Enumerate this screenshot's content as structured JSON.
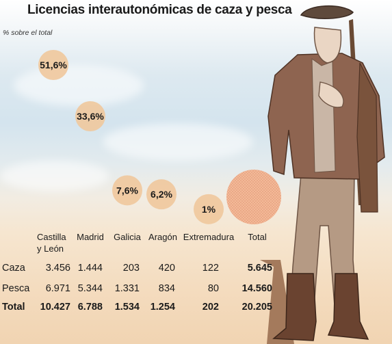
{
  "chart_data": {
    "type": "bubble",
    "title": "Licencias interautonómicas de caza y pesca",
    "subtitle": "% sobre el total",
    "categories": [
      "Castilla y León",
      "Madrid",
      "Galicia",
      "Aragón",
      "Extremadura",
      "Total"
    ],
    "series": [
      {
        "values": [
          51.6,
          33.6,
          7.6,
          6.2,
          1.0
        ],
        "labels": [
          "51,6%",
          "33,6%",
          "7,6%",
          "6,2%",
          "1%"
        ]
      }
    ],
    "colors": {
      "bubble": "#f0c89c",
      "total_bubble": "#f2b48c",
      "text": "#1a1a1a"
    }
  },
  "table": {
    "columns": [
      "Castilla\ny León",
      "Madrid",
      "Galicia",
      "Aragón",
      "Extremadura",
      "Total"
    ],
    "rows": [
      {
        "label": "Caza",
        "values": [
          "3.456",
          "1.444",
          "203",
          "420",
          "122",
          "5.645"
        ]
      },
      {
        "label": "Pesca",
        "values": [
          "6.971",
          "5.344",
          "1.331",
          "834",
          "80",
          "14.560"
        ]
      },
      {
        "label": "Total",
        "values": [
          "10.427",
          "6.788",
          "1.534",
          "1.254",
          "202",
          "20.205"
        ]
      }
    ]
  }
}
